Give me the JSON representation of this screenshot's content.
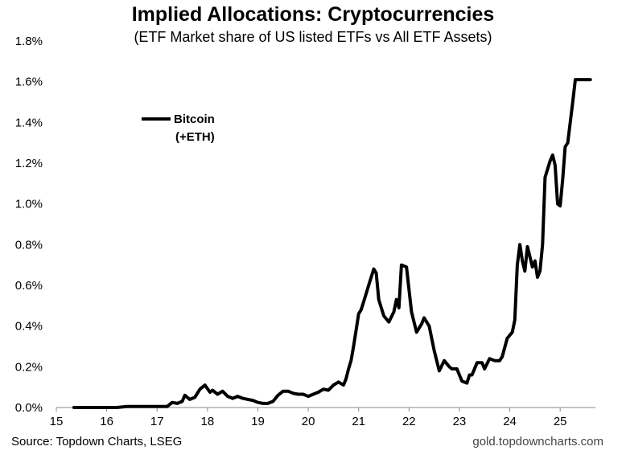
{
  "chart_data": {
    "type": "line",
    "title": "Implied Allocations: Cryptocurrencies",
    "subtitle": "(ETF Market share of US listed ETFs vs All ETF Assets)",
    "xlabel": "",
    "ylabel": "",
    "xlim": [
      15,
      25.7
    ],
    "ylim": [
      0,
      1.8
    ],
    "x_ticks": [
      "15",
      "16",
      "17",
      "18",
      "19",
      "20",
      "21",
      "22",
      "23",
      "24",
      "25"
    ],
    "y_ticks": [
      "0.0%",
      "0.2%",
      "0.4%",
      "0.6%",
      "0.8%",
      "1.0%",
      "1.2%",
      "1.4%",
      "1.6%",
      "1.8%"
    ],
    "grid": false,
    "legend": {
      "position": "top-left",
      "entries": [
        "Bitcoin",
        "(+ETH)"
      ]
    },
    "series": [
      {
        "name": "Bitcoin (+ETH)",
        "color": "#000000",
        "x": [
          15.35,
          15.6,
          15.8,
          16.0,
          16.2,
          16.4,
          16.6,
          16.8,
          17.0,
          17.2,
          17.3,
          17.4,
          17.5,
          17.55,
          17.65,
          17.75,
          17.85,
          17.95,
          18.05,
          18.1,
          18.2,
          18.3,
          18.4,
          18.5,
          18.6,
          18.7,
          18.8,
          18.9,
          19.0,
          19.1,
          19.2,
          19.3,
          19.4,
          19.5,
          19.6,
          19.7,
          19.8,
          19.9,
          20.0,
          20.1,
          20.2,
          20.3,
          20.4,
          20.5,
          20.6,
          20.7,
          20.75,
          20.8,
          20.85,
          20.9,
          20.95,
          21.0,
          21.05,
          21.1,
          21.2,
          21.3,
          21.35,
          21.4,
          21.5,
          21.6,
          21.7,
          21.75,
          21.8,
          21.85,
          21.95,
          22.0,
          22.05,
          22.15,
          22.25,
          22.3,
          22.4,
          22.5,
          22.6,
          22.7,
          22.8,
          22.85,
          22.9,
          22.95,
          23.05,
          23.15,
          23.2,
          23.25,
          23.35,
          23.45,
          23.5,
          23.6,
          23.7,
          23.8,
          23.85,
          23.95,
          24.05,
          24.1,
          24.15,
          24.2,
          24.25,
          24.3,
          24.35,
          24.4,
          24.45,
          24.5,
          24.55,
          24.6,
          24.65,
          24.7,
          24.75,
          24.8,
          24.85,
          24.9,
          24.95,
          25.0,
          25.05,
          25.1,
          25.15,
          25.2,
          25.25,
          25.3,
          25.35,
          25.4,
          25.45,
          25.5,
          25.55,
          25.6
        ],
        "values": [
          0.0,
          0.0,
          0.0,
          0.0,
          0.0,
          0.005,
          0.005,
          0.005,
          0.005,
          0.005,
          0.025,
          0.02,
          0.03,
          0.06,
          0.04,
          0.05,
          0.09,
          0.11,
          0.075,
          0.085,
          0.065,
          0.08,
          0.055,
          0.045,
          0.055,
          0.045,
          0.04,
          0.035,
          0.025,
          0.02,
          0.02,
          0.03,
          0.06,
          0.08,
          0.08,
          0.07,
          0.065,
          0.065,
          0.055,
          0.065,
          0.075,
          0.09,
          0.085,
          0.11,
          0.125,
          0.11,
          0.14,
          0.19,
          0.23,
          0.3,
          0.38,
          0.46,
          0.48,
          0.52,
          0.6,
          0.68,
          0.66,
          0.53,
          0.45,
          0.42,
          0.47,
          0.53,
          0.49,
          0.7,
          0.69,
          0.58,
          0.47,
          0.37,
          0.41,
          0.44,
          0.4,
          0.28,
          0.18,
          0.23,
          0.2,
          0.19,
          0.19,
          0.19,
          0.13,
          0.12,
          0.16,
          0.16,
          0.22,
          0.22,
          0.19,
          0.24,
          0.23,
          0.23,
          0.25,
          0.34,
          0.37,
          0.43,
          0.7,
          0.8,
          0.72,
          0.67,
          0.79,
          0.74,
          0.69,
          0.72,
          0.64,
          0.67,
          0.8,
          1.13,
          1.17,
          1.21,
          1.24,
          1.19,
          1.0,
          0.99,
          1.12,
          1.28,
          1.3,
          1.4,
          1.5,
          1.61,
          1.61,
          1.61,
          1.61,
          1.61,
          1.61,
          1.61
        ]
      }
    ]
  },
  "footer": {
    "source": "Source: Topdown Charts, LSEG",
    "website": "gold.topdowncharts.com"
  }
}
